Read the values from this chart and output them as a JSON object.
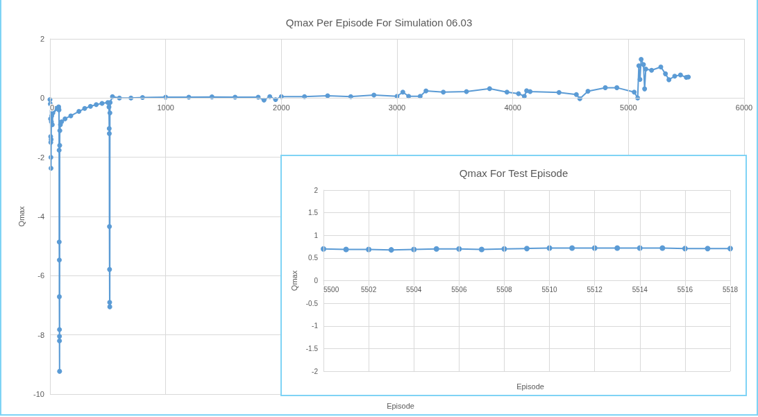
{
  "chart_data": [
    {
      "type": "line",
      "title": "Qmax Per Episode For Simulation 06.03",
      "xlabel": "Episode",
      "ylabel": "Qmax",
      "xlim": [
        0,
        6000
      ],
      "xticks": [
        0,
        1000,
        2000,
        3000,
        4000,
        5000,
        6000
      ],
      "ylim": [
        -10,
        2
      ],
      "yticks": [
        -10,
        -8,
        -6,
        -4,
        -2,
        0,
        2
      ],
      "grid": true,
      "marker": "circle",
      "line_style": "solid",
      "series": [
        {
          "color": "#5b9bd5",
          "x": [
            0,
            3,
            5,
            6,
            7,
            8,
            9,
            10,
            12,
            15,
            20,
            25,
            35,
            50,
            65,
            75,
            78,
            79,
            80,
            81,
            81,
            82,
            82,
            82,
            83,
            84,
            85,
            90,
            100,
            130,
            180,
            250,
            300,
            350,
            400,
            450,
            500,
            510,
            512,
            513,
            514,
            515,
            516,
            517,
            518,
            520,
            540,
            600,
            700,
            800,
            1000,
            1200,
            1400,
            1600,
            1800,
            1850,
            1900,
            1950,
            2000,
            2200,
            2400,
            2600,
            2800,
            3000,
            3050,
            3100,
            3200,
            3250,
            3400,
            3600,
            3800,
            3950,
            4050,
            4100,
            4120,
            4150,
            4400,
            4550,
            4580,
            4650,
            4800,
            4900,
            5050,
            5080,
            5090,
            5100,
            5110,
            5130,
            5140,
            5150,
            5200,
            5280,
            5320,
            5350,
            5400,
            5450,
            5500,
            5518
          ],
          "values": [
            -0.05,
            -0.2,
            -0.7,
            -1.3,
            -1.5,
            -2.0,
            -2.37,
            -1.4,
            -0.8,
            -0.6,
            -0.9,
            -0.5,
            -0.4,
            -0.35,
            -0.35,
            -0.3,
            -0.4,
            -1.76,
            -4.86,
            -5.47,
            -6.71,
            -7.82,
            -8.05,
            -8.2,
            -9.23,
            -1.6,
            -1.1,
            -0.9,
            -0.8,
            -0.7,
            -0.6,
            -0.45,
            -0.35,
            -0.28,
            -0.22,
            -0.18,
            -0.15,
            -0.3,
            -1.03,
            -1.2,
            -4.34,
            -5.79,
            -6.9,
            -7.05,
            -0.5,
            -0.15,
            0.05,
            0.0,
            0.0,
            0.02,
            0.03,
            0.03,
            0.04,
            0.03,
            0.03,
            -0.07,
            0.05,
            -0.05,
            0.05,
            0.05,
            0.08,
            0.05,
            0.1,
            0.06,
            0.2,
            0.06,
            0.06,
            0.24,
            0.2,
            0.22,
            0.32,
            0.2,
            0.15,
            0.06,
            0.25,
            0.22,
            0.19,
            0.12,
            -0.02,
            0.23,
            0.35,
            0.35,
            0.2,
            0.0,
            1.09,
            0.63,
            1.31,
            1.13,
            0.31,
            0.98,
            0.94,
            1.05,
            0.82,
            0.62,
            0.74,
            0.78,
            0.7,
            0.71
          ]
        }
      ]
    },
    {
      "type": "line",
      "title": "Qmax For Test Episode",
      "xlabel": "Episode",
      "ylabel": "Qmax",
      "xlim": [
        5500,
        5518
      ],
      "xticks": [
        5500,
        5502,
        5504,
        5506,
        5508,
        5510,
        5512,
        5514,
        5516,
        5518
      ],
      "ylim": [
        -2,
        2
      ],
      "yticks": [
        -2,
        -1.5,
        -1,
        -0.5,
        0,
        0.5,
        1,
        1.5,
        2
      ],
      "grid": true,
      "marker": "circle",
      "line_style": "solid",
      "series": [
        {
          "color": "#5b9bd5",
          "x": [
            5500,
            5501,
            5502,
            5503,
            5504,
            5505,
            5506,
            5507,
            5508,
            5509,
            5510,
            5511,
            5512,
            5513,
            5514,
            5515,
            5516,
            5517,
            5518
          ],
          "values": [
            0.7,
            0.69,
            0.69,
            0.68,
            0.69,
            0.7,
            0.7,
            0.69,
            0.7,
            0.71,
            0.72,
            0.72,
            0.72,
            0.72,
            0.72,
            0.72,
            0.71,
            0.71,
            0.71
          ]
        }
      ]
    }
  ]
}
